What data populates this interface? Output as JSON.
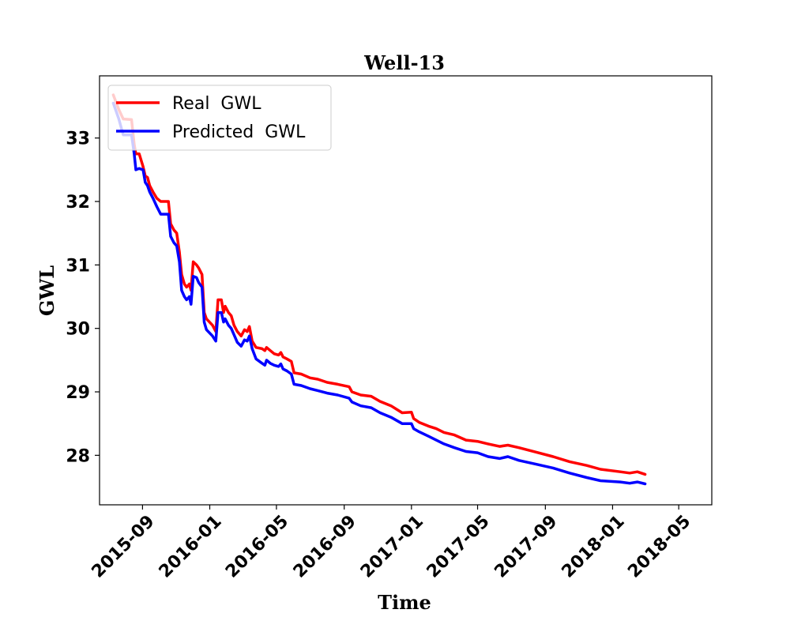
{
  "chart_data": {
    "type": "line",
    "title": "Well-13",
    "xlabel": "Time",
    "ylabel": "GWL",
    "xlim": [
      "2015-06-15",
      "2018-06-30"
    ],
    "ylim": [
      27.22,
      33.98
    ],
    "y_ticks": [
      28,
      29,
      30,
      31,
      32,
      33
    ],
    "x_ticks": [
      "2015-09",
      "2016-01",
      "2016-05",
      "2016-09",
      "2017-01",
      "2017-05",
      "2017-09",
      "2018-01",
      "2018-05"
    ],
    "grid": false,
    "legend_position": "top-left",
    "series": [
      {
        "name": "Real  GWL",
        "color": "#ff0000",
        "points": [
          [
            "2015-07-10",
            33.68
          ],
          [
            "2015-07-20",
            33.45
          ],
          [
            "2015-07-28",
            33.3
          ],
          [
            "2015-08-12",
            33.29
          ],
          [
            "2015-08-17",
            32.9
          ],
          [
            "2015-08-20",
            32.75
          ],
          [
            "2015-08-26",
            32.75
          ],
          [
            "2015-09-02",
            32.55
          ],
          [
            "2015-09-06",
            32.4
          ],
          [
            "2015-09-10",
            32.38
          ],
          [
            "2015-09-14",
            32.25
          ],
          [
            "2015-09-20",
            32.15
          ],
          [
            "2015-09-27",
            32.05
          ],
          [
            "2015-10-04",
            32.0
          ],
          [
            "2015-10-18",
            32.0
          ],
          [
            "2015-10-22",
            31.65
          ],
          [
            "2015-10-28",
            31.55
          ],
          [
            "2015-11-02",
            31.5
          ],
          [
            "2015-11-07",
            31.2
          ],
          [
            "2015-11-11",
            30.85
          ],
          [
            "2015-11-16",
            30.7
          ],
          [
            "2015-11-20",
            30.65
          ],
          [
            "2015-11-25",
            30.7
          ],
          [
            "2015-11-28",
            30.6
          ],
          [
            "2015-12-02",
            31.05
          ],
          [
            "2015-12-08",
            31.0
          ],
          [
            "2015-12-12",
            30.95
          ],
          [
            "2015-12-18",
            30.85
          ],
          [
            "2015-12-22",
            30.25
          ],
          [
            "2015-12-26",
            30.15
          ],
          [
            "2016-01-06",
            30.05
          ],
          [
            "2016-01-12",
            29.95
          ],
          [
            "2016-01-16",
            30.45
          ],
          [
            "2016-01-22",
            30.45
          ],
          [
            "2016-01-26",
            30.25
          ],
          [
            "2016-01-29",
            30.35
          ],
          [
            "2016-02-04",
            30.25
          ],
          [
            "2016-02-09",
            30.2
          ],
          [
            "2016-02-14",
            30.05
          ],
          [
            "2016-02-20",
            29.95
          ],
          [
            "2016-02-27",
            29.88
          ],
          [
            "2016-03-04",
            29.98
          ],
          [
            "2016-03-09",
            29.95
          ],
          [
            "2016-03-13",
            30.03
          ],
          [
            "2016-03-18",
            29.8
          ],
          [
            "2016-03-25",
            29.7
          ],
          [
            "2016-04-05",
            29.68
          ],
          [
            "2016-04-10",
            29.65
          ],
          [
            "2016-04-13",
            29.7
          ],
          [
            "2016-04-20",
            29.65
          ],
          [
            "2016-04-27",
            29.6
          ],
          [
            "2016-05-05",
            29.58
          ],
          [
            "2016-05-09",
            29.62
          ],
          [
            "2016-05-13",
            29.55
          ],
          [
            "2016-05-20",
            29.52
          ],
          [
            "2016-05-28",
            29.48
          ],
          [
            "2016-06-02",
            29.3
          ],
          [
            "2016-06-15",
            29.28
          ],
          [
            "2016-07-01",
            29.22
          ],
          [
            "2016-07-15",
            29.2
          ],
          [
            "2016-08-01",
            29.15
          ],
          [
            "2016-08-20",
            29.12
          ],
          [
            "2016-09-10",
            29.08
          ],
          [
            "2016-09-15",
            29.0
          ],
          [
            "2016-10-01",
            28.95
          ],
          [
            "2016-10-20",
            28.93
          ],
          [
            "2016-11-05",
            28.85
          ],
          [
            "2016-11-25",
            28.78
          ],
          [
            "2016-12-15",
            28.67
          ],
          [
            "2017-01-01",
            28.68
          ],
          [
            "2017-01-05",
            28.58
          ],
          [
            "2017-01-15",
            28.52
          ],
          [
            "2017-02-01",
            28.46
          ],
          [
            "2017-02-15",
            28.42
          ],
          [
            "2017-03-01",
            28.36
          ],
          [
            "2017-03-20",
            28.32
          ],
          [
            "2017-04-10",
            28.24
          ],
          [
            "2017-05-01",
            28.22
          ],
          [
            "2017-05-20",
            28.18
          ],
          [
            "2017-06-10",
            28.14
          ],
          [
            "2017-06-25",
            28.16
          ],
          [
            "2017-07-15",
            28.12
          ],
          [
            "2017-08-15",
            28.05
          ],
          [
            "2017-09-15",
            27.98
          ],
          [
            "2017-10-15",
            27.9
          ],
          [
            "2017-11-15",
            27.84
          ],
          [
            "2017-12-10",
            27.78
          ],
          [
            "2018-01-15",
            27.74
          ],
          [
            "2018-02-01",
            27.72
          ],
          [
            "2018-02-15",
            27.74
          ],
          [
            "2018-03-01",
            27.7
          ]
        ]
      },
      {
        "name": "Predicted  GWL",
        "color": "#0000ff",
        "points": [
          [
            "2015-07-10",
            33.55
          ],
          [
            "2015-07-20",
            33.3
          ],
          [
            "2015-07-28",
            33.05
          ],
          [
            "2015-08-12",
            33.05
          ],
          [
            "2015-08-17",
            32.75
          ],
          [
            "2015-08-20",
            32.5
          ],
          [
            "2015-08-26",
            32.52
          ],
          [
            "2015-09-02",
            32.5
          ],
          [
            "2015-09-06",
            32.3
          ],
          [
            "2015-09-10",
            32.25
          ],
          [
            "2015-09-14",
            32.15
          ],
          [
            "2015-09-20",
            32.05
          ],
          [
            "2015-09-27",
            31.92
          ],
          [
            "2015-10-04",
            31.8
          ],
          [
            "2015-10-18",
            31.8
          ],
          [
            "2015-10-22",
            31.45
          ],
          [
            "2015-10-28",
            31.35
          ],
          [
            "2015-11-02",
            31.3
          ],
          [
            "2015-11-07",
            31.05
          ],
          [
            "2015-11-11",
            30.6
          ],
          [
            "2015-11-16",
            30.5
          ],
          [
            "2015-11-20",
            30.45
          ],
          [
            "2015-11-25",
            30.5
          ],
          [
            "2015-11-28",
            30.38
          ],
          [
            "2015-12-02",
            30.82
          ],
          [
            "2015-12-08",
            30.8
          ],
          [
            "2015-12-12",
            30.72
          ],
          [
            "2015-12-18",
            30.65
          ],
          [
            "2015-12-22",
            30.1
          ],
          [
            "2015-12-26",
            29.98
          ],
          [
            "2016-01-06",
            29.88
          ],
          [
            "2016-01-12",
            29.8
          ],
          [
            "2016-01-16",
            30.25
          ],
          [
            "2016-01-22",
            30.25
          ],
          [
            "2016-01-26",
            30.1
          ],
          [
            "2016-01-29",
            30.15
          ],
          [
            "2016-02-04",
            30.05
          ],
          [
            "2016-02-09",
            30.0
          ],
          [
            "2016-02-14",
            29.9
          ],
          [
            "2016-02-20",
            29.78
          ],
          [
            "2016-02-27",
            29.72
          ],
          [
            "2016-03-04",
            29.82
          ],
          [
            "2016-03-09",
            29.8
          ],
          [
            "2016-03-13",
            29.88
          ],
          [
            "2016-03-18",
            29.68
          ],
          [
            "2016-03-25",
            29.52
          ],
          [
            "2016-04-05",
            29.45
          ],
          [
            "2016-04-10",
            29.42
          ],
          [
            "2016-04-13",
            29.5
          ],
          [
            "2016-04-20",
            29.45
          ],
          [
            "2016-04-27",
            29.42
          ],
          [
            "2016-05-05",
            29.4
          ],
          [
            "2016-05-09",
            29.44
          ],
          [
            "2016-05-13",
            29.36
          ],
          [
            "2016-05-20",
            29.33
          ],
          [
            "2016-05-28",
            29.28
          ],
          [
            "2016-06-02",
            29.12
          ],
          [
            "2016-06-15",
            29.1
          ],
          [
            "2016-07-01",
            29.05
          ],
          [
            "2016-07-15",
            29.02
          ],
          [
            "2016-08-01",
            28.98
          ],
          [
            "2016-08-20",
            28.95
          ],
          [
            "2016-09-10",
            28.9
          ],
          [
            "2016-09-15",
            28.84
          ],
          [
            "2016-10-01",
            28.78
          ],
          [
            "2016-10-20",
            28.75
          ],
          [
            "2016-11-05",
            28.67
          ],
          [
            "2016-11-25",
            28.6
          ],
          [
            "2016-12-15",
            28.5
          ],
          [
            "2017-01-01",
            28.5
          ],
          [
            "2017-01-05",
            28.42
          ],
          [
            "2017-01-15",
            28.37
          ],
          [
            "2017-02-01",
            28.3
          ],
          [
            "2017-02-15",
            28.24
          ],
          [
            "2017-03-01",
            28.18
          ],
          [
            "2017-03-20",
            28.12
          ],
          [
            "2017-04-10",
            28.06
          ],
          [
            "2017-05-01",
            28.04
          ],
          [
            "2017-05-20",
            27.98
          ],
          [
            "2017-06-10",
            27.95
          ],
          [
            "2017-06-25",
            27.98
          ],
          [
            "2017-07-15",
            27.92
          ],
          [
            "2017-08-15",
            27.86
          ],
          [
            "2017-09-15",
            27.8
          ],
          [
            "2017-10-15",
            27.72
          ],
          [
            "2017-11-15",
            27.65
          ],
          [
            "2017-12-10",
            27.6
          ],
          [
            "2018-01-15",
            27.58
          ],
          [
            "2018-02-01",
            27.56
          ],
          [
            "2018-02-15",
            27.58
          ],
          [
            "2018-03-01",
            27.55
          ]
        ]
      }
    ]
  }
}
